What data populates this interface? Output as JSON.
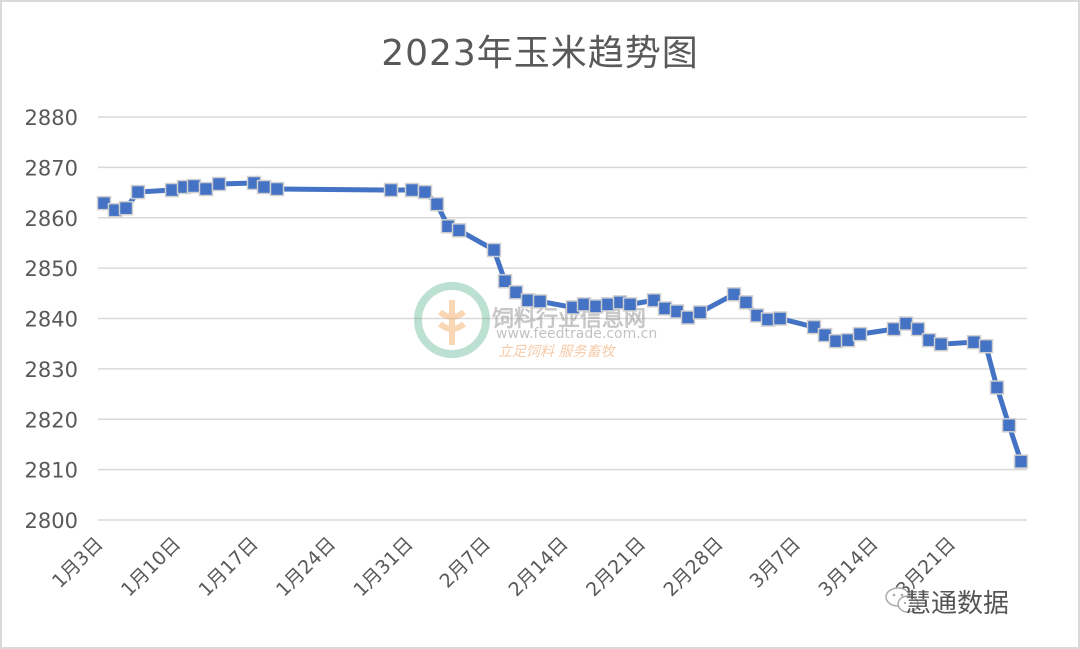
{
  "chart_data": {
    "type": "line",
    "title": "2023年玉米趋势图",
    "xlabel": "",
    "ylabel": "",
    "ylim": [
      2800,
      2880
    ],
    "yticks": [
      2800,
      2810,
      2820,
      2830,
      2840,
      2850,
      2860,
      2870,
      2880
    ],
    "xtick_labels": [
      "1月3日",
      "1月10日",
      "1月17日",
      "1月24日",
      "1月31日",
      "2月7日",
      "2月14日",
      "2月21日",
      "2月28日",
      "3月7日",
      "3月14日",
      "3月21日"
    ],
    "grid": true,
    "legend": null,
    "series": [
      {
        "name": "玉米",
        "color": "#4472c4",
        "marker": "square",
        "x": [
          "1月3日",
          "1月4日",
          "1月5日",
          "1月6日",
          "1月9日",
          "1月10日",
          "1月11日",
          "1月12日",
          "1月13日",
          "1月16日",
          "1月17日",
          "1月18日",
          "1月29日",
          "1月31日",
          "2月1日",
          "2月2日",
          "2月3日",
          "2月4日",
          "2月7日",
          "2月8日",
          "2月9日",
          "2月10日",
          "2月11日",
          "2月14日",
          "2月15日",
          "2月16日",
          "2月17日",
          "2月18日",
          "2月19日",
          "2月21日",
          "2月22日",
          "2月23日",
          "2月24日",
          "2月25日",
          "2月28日",
          "3月1日",
          "3月2日",
          "3月3日",
          "3月4日",
          "3月7日",
          "3月8日",
          "3月9日",
          "3月10日",
          "3月11日",
          "3月14日",
          "3月15日",
          "3月16日",
          "3月17日",
          "3月18日",
          "3月21日",
          "3月22日",
          "3月23日",
          "3月24日",
          "3月25日"
        ],
        "values": [
          2862.9,
          2861.5,
          2861.9,
          2865.1,
          2865.5,
          2866.1,
          2866.3,
          2865.7,
          2866.7,
          2866.9,
          2866.1,
          2865.7,
          2865.5,
          2865.5,
          2865.1,
          2862.7,
          2858.3,
          2857.5,
          2853.6,
          2847.4,
          2845.2,
          2843.6,
          2843.4,
          2842.2,
          2842.8,
          2842.4,
          2842.8,
          2843.2,
          2842.8,
          2843.6,
          2842.0,
          2841.4,
          2840.2,
          2841.2,
          2844.8,
          2843.2,
          2840.6,
          2839.8,
          2840.0,
          2838.3,
          2836.7,
          2835.5,
          2835.7,
          2836.9,
          2837.9,
          2839.0,
          2837.9,
          2835.7,
          2834.9,
          2835.3,
          2834.5,
          2826.3,
          2818.8,
          2811.6
        ],
        "px": [
          104,
          115,
          126,
          138,
          172,
          184,
          194,
          206,
          219,
          254,
          264,
          277,
          391,
          412,
          425,
          437,
          448,
          459,
          494,
          505,
          516,
          528,
          540,
          573,
          584,
          596,
          608,
          620,
          630,
          654,
          665,
          677,
          688,
          700,
          734,
          746,
          757,
          768,
          780,
          814,
          825,
          836,
          848,
          860,
          894,
          906,
          918,
          929,
          941,
          974,
          986,
          997,
          1009,
          1021
        ]
      }
    ]
  },
  "watermark": {
    "name": "饲料行业信息网",
    "url": "www.feedtrade.com.cn",
    "slogan": "立足饲料  服务畜牧"
  },
  "brand": {
    "label": "慧通数据"
  }
}
